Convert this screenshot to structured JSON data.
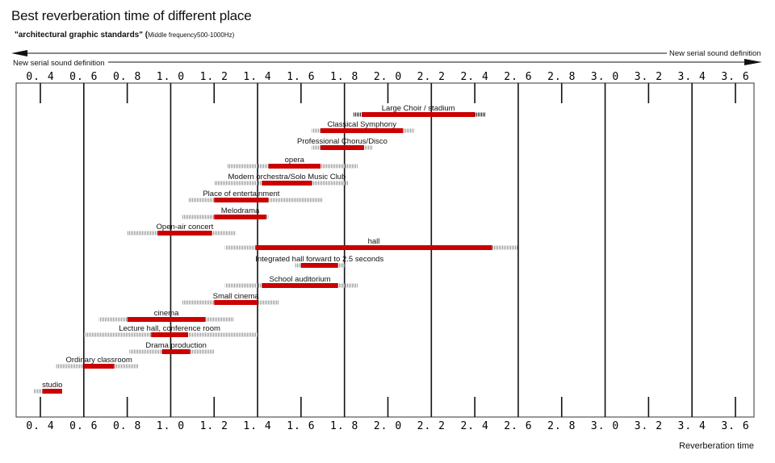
{
  "chart_data": {
    "type": "bar",
    "title": "Best reverberation time of different place",
    "subtitle": "\"architectural graphic standards\" (",
    "subtitle_note": "Middle frequency500-1000Hz)",
    "xlabel": "Reverberation time",
    "definition_left": "New serial sound definition",
    "definition_right": "New serial sound definition",
    "xlim": [
      0.35,
      3.7
    ],
    "grid": true,
    "ticks": [
      {
        "label": "0. 4",
        "value": 0.4
      },
      {
        "label": "0. 6",
        "value": 0.6
      },
      {
        "label": "0. 8",
        "value": 0.8
      },
      {
        "label": "1. 0",
        "value": 1.0
      },
      {
        "label": "1. 2",
        "value": 1.2
      },
      {
        "label": "1. 4",
        "value": 1.4
      },
      {
        "label": "1. 6",
        "value": 1.6
      },
      {
        "label": "1. 8",
        "value": 1.8
      },
      {
        "label": "2. 0",
        "value": 2.0
      },
      {
        "label": "2. 2",
        "value": 2.2
      },
      {
        "label": "2. 4",
        "value": 2.4
      },
      {
        "label": "2. 6",
        "value": 2.6
      },
      {
        "label": "2. 8",
        "value": 2.8
      },
      {
        "label": "3. 0",
        "value": 3.0
      },
      {
        "label": "3. 2",
        "value": 3.2
      },
      {
        "label": "3. 4",
        "value": 3.4
      },
      {
        "label": "3. 6",
        "value": 3.6
      }
    ],
    "bar_color": "#cc0000",
    "range_color": "#9a9a9a",
    "bars": [
      {
        "name": "Large Choir / stadium",
        "range": [
          1.84,
          2.45
        ],
        "best": [
          1.88,
          2.4
        ]
      },
      {
        "name": "Classical Symphony",
        "range": [
          1.65,
          2.12
        ],
        "best": [
          1.69,
          2.07
        ]
      },
      {
        "name": "Professional Chorus/Disco",
        "range": [
          1.65,
          1.93
        ],
        "best": [
          1.69,
          1.89
        ]
      },
      {
        "name": "opera",
        "range": [
          1.26,
          1.86
        ],
        "best": [
          1.45,
          1.69
        ]
      },
      {
        "name": "Modern orchestra/Solo Music Club",
        "range": [
          1.2,
          1.82
        ],
        "best": [
          1.42,
          1.65
        ]
      },
      {
        "name": "Place of entertainment",
        "range": [
          1.08,
          1.7
        ],
        "best": [
          1.2,
          1.45
        ]
      },
      {
        "name": "Melodrama",
        "range": [
          1.05,
          1.45
        ],
        "best": [
          1.2,
          1.44
        ]
      },
      {
        "name": "Open-air concert",
        "range": [
          0.8,
          1.3
        ],
        "best": [
          0.94,
          1.19
        ]
      },
      {
        "name": "hall",
        "range": [
          1.25,
          2.6
        ],
        "best": [
          1.39,
          2.48
        ]
      },
      {
        "name": "Integrated hall forward to 2.5 seconds",
        "range": [
          1.57,
          1.8
        ],
        "best": [
          1.6,
          1.77
        ]
      },
      {
        "name": "School auditorium",
        "range": [
          1.25,
          1.86
        ],
        "best": [
          1.42,
          1.77
        ]
      },
      {
        "name": "Small cinema",
        "range": [
          1.05,
          1.5
        ],
        "best": [
          1.2,
          1.4
        ]
      },
      {
        "name": "cinema",
        "range": [
          0.67,
          1.29
        ],
        "best": [
          0.8,
          1.16
        ]
      },
      {
        "name": "Lecture hall, conference room",
        "range": [
          0.6,
          1.4
        ],
        "best": [
          0.91,
          1.08
        ]
      },
      {
        "name": "Drama production",
        "range": [
          0.81,
          1.2
        ],
        "best": [
          0.96,
          1.09
        ]
      },
      {
        "name": "Ordinary classroom",
        "range": [
          0.47,
          0.85
        ],
        "best": [
          0.6,
          0.74
        ]
      },
      {
        "name": "studio",
        "range": [
          0.37,
          0.48
        ],
        "best": [
          0.41,
          0.5
        ]
      }
    ]
  }
}
